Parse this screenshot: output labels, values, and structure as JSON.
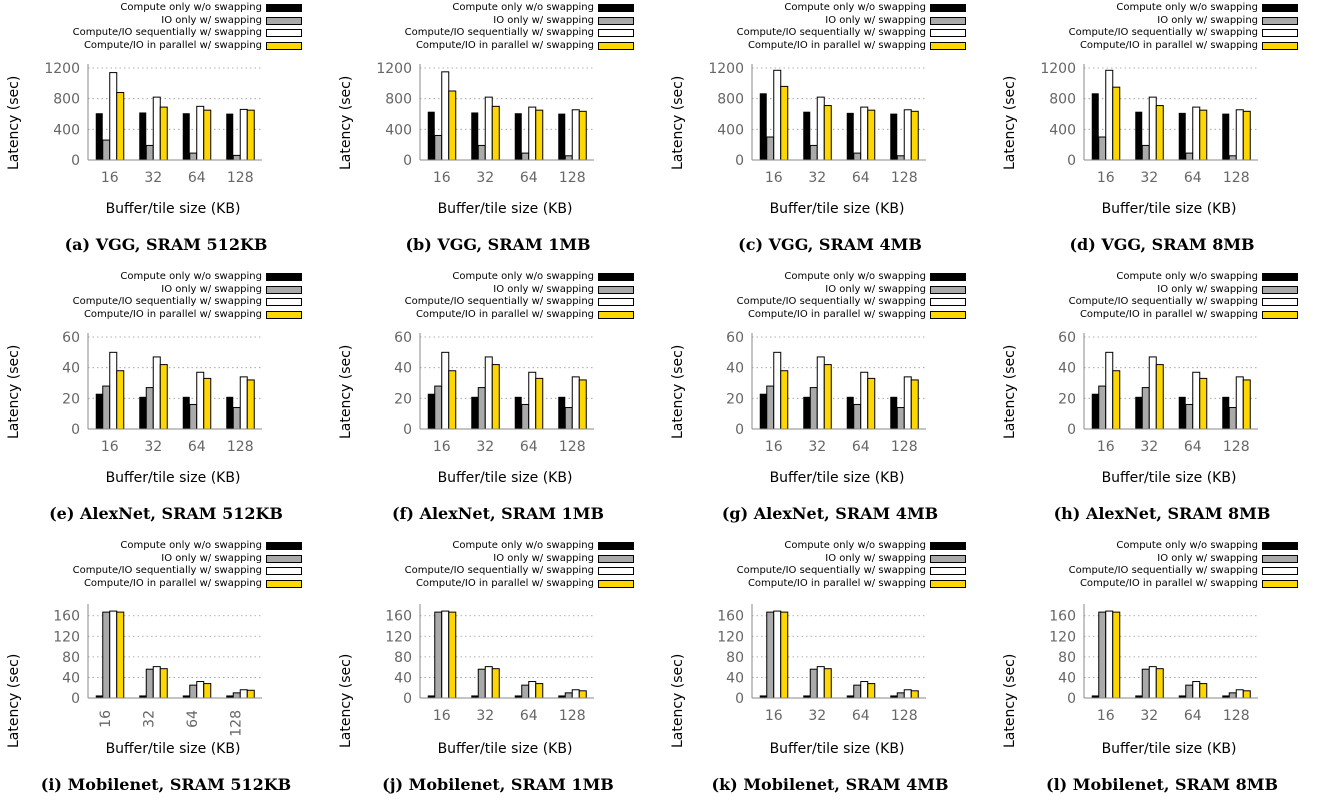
{
  "figure": {
    "legend": [
      {
        "name": "Compute only w/o swapping",
        "color": "#000000"
      },
      {
        "name": "IO only w/ swapping",
        "color": "#aaaaaa"
      },
      {
        "name": "Compute/IO sequentially w/ swapping",
        "color": "#ffffff"
      },
      {
        "name": "Compute/IO in parallel w/ swapping",
        "color": "#ffd700"
      }
    ]
  },
  "chart_data": [
    {
      "type": "bar",
      "caption": "(a) VGG, SRAM 512KB",
      "xlabel": "Buffer/tile size (KB)",
      "ylabel": "Latency (sec)",
      "categories": [
        "16",
        "32",
        "64",
        "128"
      ],
      "ylim": [
        0,
        1200
      ],
      "yticks": [
        0,
        400,
        800,
        1200
      ],
      "series": [
        {
          "name": "Compute only w/o swapping",
          "values": [
            610,
            620,
            610,
            605
          ]
        },
        {
          "name": "IO only w/ swapping",
          "values": [
            260,
            190,
            90,
            60
          ]
        },
        {
          "name": "Compute/IO sequentially w/ swapping",
          "values": [
            1140,
            820,
            700,
            660
          ]
        },
        {
          "name": "Compute/IO in parallel w/ swapping",
          "values": [
            880,
            690,
            650,
            650
          ]
        }
      ]
    },
    {
      "type": "bar",
      "caption": "(b) VGG, SRAM 1MB",
      "xlabel": "Buffer/tile size (KB)",
      "ylabel": "Latency (sec)",
      "categories": [
        "16",
        "32",
        "64",
        "128"
      ],
      "ylim": [
        0,
        1200
      ],
      "yticks": [
        0,
        400,
        800,
        1200
      ],
      "series": [
        {
          "name": "Compute only w/o swapping",
          "values": [
            630,
            620,
            610,
            605
          ]
        },
        {
          "name": "IO only w/ swapping",
          "values": [
            320,
            190,
            90,
            55
          ]
        },
        {
          "name": "Compute/IO sequentially w/ swapping",
          "values": [
            1150,
            820,
            690,
            655
          ]
        },
        {
          "name": "Compute/IO in parallel w/ swapping",
          "values": [
            900,
            700,
            650,
            635
          ]
        }
      ]
    },
    {
      "type": "bar",
      "caption": "(c) VGG, SRAM 4MB",
      "xlabel": "Buffer/tile size (KB)",
      "ylabel": "Latency (sec)",
      "categories": [
        "16",
        "32",
        "64",
        "128"
      ],
      "ylim": [
        0,
        1200
      ],
      "yticks": [
        0,
        400,
        800,
        1200
      ],
      "series": [
        {
          "name": "Compute only w/o swapping",
          "values": [
            870,
            630,
            615,
            605
          ]
        },
        {
          "name": "IO only w/ swapping",
          "values": [
            300,
            190,
            90,
            55
          ]
        },
        {
          "name": "Compute/IO sequentially w/ swapping",
          "values": [
            1170,
            820,
            690,
            655
          ]
        },
        {
          "name": "Compute/IO in parallel w/ swapping",
          "values": [
            960,
            710,
            650,
            635
          ]
        }
      ]
    },
    {
      "type": "bar",
      "caption": "(d) VGG, SRAM 8MB",
      "xlabel": "Buffer/tile size (KB)",
      "ylabel": "Latency (sec)",
      "categories": [
        "16",
        "32",
        "64",
        "128"
      ],
      "ylim": [
        0,
        1200
      ],
      "yticks": [
        0,
        400,
        800,
        1200
      ],
      "series": [
        {
          "name": "Compute only w/o swapping",
          "values": [
            870,
            630,
            615,
            605
          ]
        },
        {
          "name": "IO only w/ swapping",
          "values": [
            300,
            190,
            90,
            55
          ]
        },
        {
          "name": "Compute/IO sequentially w/ swapping",
          "values": [
            1170,
            820,
            690,
            655
          ]
        },
        {
          "name": "Compute/IO in parallel w/ swapping",
          "values": [
            950,
            710,
            650,
            635
          ]
        }
      ]
    },
    {
      "type": "bar",
      "caption": "(e) AlexNet, SRAM 512KB",
      "xlabel": "Buffer/tile size (KB)",
      "ylabel": "Latency (sec)",
      "categories": [
        "16",
        "32",
        "64",
        "128"
      ],
      "ylim": [
        0,
        60
      ],
      "yticks": [
        0,
        20,
        40,
        60
      ],
      "series": [
        {
          "name": "Compute only w/o swapping",
          "values": [
            23,
            21,
            21,
            21
          ]
        },
        {
          "name": "IO only w/ swapping",
          "values": [
            28,
            27,
            16,
            14
          ]
        },
        {
          "name": "Compute/IO sequentially w/ swapping",
          "values": [
            50,
            47,
            37,
            34
          ]
        },
        {
          "name": "Compute/IO in parallel w/ swapping",
          "values": [
            38,
            42,
            33,
            32
          ]
        }
      ]
    },
    {
      "type": "bar",
      "caption": "(f) AlexNet, SRAM 1MB",
      "xlabel": "Buffer/tile size (KB)",
      "ylabel": "Latency (sec)",
      "categories": [
        "16",
        "32",
        "64",
        "128"
      ],
      "ylim": [
        0,
        60
      ],
      "yticks": [
        0,
        20,
        40,
        60
      ],
      "series": [
        {
          "name": "Compute only w/o swapping",
          "values": [
            23,
            21,
            21,
            21
          ]
        },
        {
          "name": "IO only w/ swapping",
          "values": [
            28,
            27,
            16,
            14
          ]
        },
        {
          "name": "Compute/IO sequentially w/ swapping",
          "values": [
            50,
            47,
            37,
            34
          ]
        },
        {
          "name": "Compute/IO in parallel w/ swapping",
          "values": [
            38,
            42,
            33,
            32
          ]
        }
      ]
    },
    {
      "type": "bar",
      "caption": "(g) AlexNet, SRAM 4MB",
      "xlabel": "Buffer/tile size (KB)",
      "ylabel": "Latency (sec)",
      "categories": [
        "16",
        "32",
        "64",
        "128"
      ],
      "ylim": [
        0,
        60
      ],
      "yticks": [
        0,
        20,
        40,
        60
      ],
      "series": [
        {
          "name": "Compute only w/o swapping",
          "values": [
            23,
            21,
            21,
            21
          ]
        },
        {
          "name": "IO only w/ swapping",
          "values": [
            28,
            27,
            16,
            14
          ]
        },
        {
          "name": "Compute/IO sequentially w/ swapping",
          "values": [
            50,
            47,
            37,
            34
          ]
        },
        {
          "name": "Compute/IO in parallel w/ swapping",
          "values": [
            38,
            42,
            33,
            32
          ]
        }
      ]
    },
    {
      "type": "bar",
      "caption": "(h) AlexNet, SRAM 8MB",
      "xlabel": "Buffer/tile size (KB)",
      "ylabel": "Latency (sec)",
      "categories": [
        "16",
        "32",
        "64",
        "128"
      ],
      "ylim": [
        0,
        60
      ],
      "yticks": [
        0,
        20,
        40,
        60
      ],
      "series": [
        {
          "name": "Compute only w/o swapping",
          "values": [
            23,
            21,
            21,
            21
          ]
        },
        {
          "name": "IO only w/ swapping",
          "values": [
            28,
            27,
            16,
            14
          ]
        },
        {
          "name": "Compute/IO sequentially w/ swapping",
          "values": [
            50,
            47,
            37,
            34
          ]
        },
        {
          "name": "Compute/IO in parallel w/ swapping",
          "values": [
            38,
            42,
            33,
            32
          ]
        }
      ]
    },
    {
      "type": "bar",
      "caption": "(i) Mobilenet, SRAM 512KB",
      "xlabel": "Buffer/tile size (KB)",
      "ylabel": "Latency (sec)",
      "categories": [
        "16",
        "32",
        "64",
        "128"
      ],
      "ylim": [
        0,
        175
      ],
      "yticks": [
        0,
        40,
        80,
        120,
        160
      ],
      "series": [
        {
          "name": "Compute only w/o swapping",
          "values": [
            5,
            5,
            5,
            5
          ]
        },
        {
          "name": "IO only w/ swapping",
          "values": [
            167,
            56,
            25,
            10
          ]
        },
        {
          "name": "Compute/IO sequentially w/ swapping",
          "values": [
            169,
            61,
            32,
            16
          ]
        },
        {
          "name": "Compute/IO in parallel w/ swapping",
          "values": [
            167,
            57,
            28,
            15
          ]
        }
      ]
    },
    {
      "type": "bar",
      "caption": "(j) Mobilenet, SRAM 1MB",
      "xlabel": "Buffer/tile size (KB)",
      "ylabel": "Latency (sec)",
      "categories": [
        "16",
        "32",
        "64",
        "128"
      ],
      "ylim": [
        0,
        175
      ],
      "yticks": [
        0,
        40,
        80,
        120,
        160
      ],
      "series": [
        {
          "name": "Compute only w/o swapping",
          "values": [
            5,
            5,
            5,
            5
          ]
        },
        {
          "name": "IO only w/ swapping",
          "values": [
            167,
            56,
            25,
            10
          ]
        },
        {
          "name": "Compute/IO sequentially w/ swapping",
          "values": [
            169,
            61,
            32,
            16
          ]
        },
        {
          "name": "Compute/IO in parallel w/ swapping",
          "values": [
            167,
            57,
            28,
            14
          ]
        }
      ]
    },
    {
      "type": "bar",
      "caption": "(k) Mobilenet, SRAM 4MB",
      "xlabel": "Buffer/tile size (KB)",
      "ylabel": "Latency (sec)",
      "categories": [
        "16",
        "32",
        "64",
        "128"
      ],
      "ylim": [
        0,
        175
      ],
      "yticks": [
        0,
        40,
        80,
        120,
        160
      ],
      "series": [
        {
          "name": "Compute only w/o swapping",
          "values": [
            5,
            5,
            5,
            5
          ]
        },
        {
          "name": "IO only w/ swapping",
          "values": [
            167,
            56,
            25,
            10
          ]
        },
        {
          "name": "Compute/IO sequentially w/ swapping",
          "values": [
            169,
            61,
            32,
            16
          ]
        },
        {
          "name": "Compute/IO in parallel w/ swapping",
          "values": [
            167,
            57,
            28,
            14
          ]
        }
      ]
    },
    {
      "type": "bar",
      "caption": "(l) Mobilenet, SRAM 8MB",
      "xlabel": "Buffer/tile size (KB)",
      "ylabel": "Latency (sec)",
      "categories": [
        "16",
        "32",
        "64",
        "128"
      ],
      "ylim": [
        0,
        175
      ],
      "yticks": [
        0,
        40,
        80,
        120,
        160
      ],
      "series": [
        {
          "name": "Compute only w/o swapping",
          "values": [
            5,
            5,
            5,
            5
          ]
        },
        {
          "name": "IO only w/ swapping",
          "values": [
            167,
            56,
            25,
            10
          ]
        },
        {
          "name": "Compute/IO sequentially w/ swapping",
          "values": [
            169,
            61,
            32,
            16
          ]
        },
        {
          "name": "Compute/IO in parallel w/ swapping",
          "values": [
            167,
            57,
            28,
            14
          ]
        }
      ]
    }
  ]
}
